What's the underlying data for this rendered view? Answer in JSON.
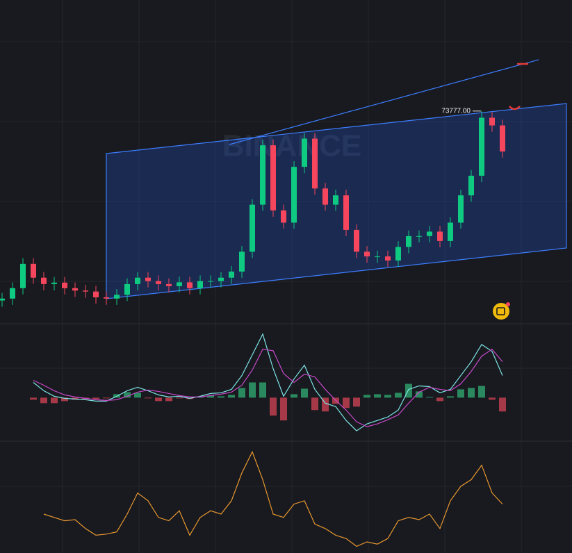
{
  "chart_data": [
    {
      "type": "candlestick",
      "watermark": "BINANCE",
      "annotation": "73777.00",
      "log_scale": true,
      "ylim": [
        2125,
        473000
      ],
      "up_color": "#0ecb81",
      "down_color": "#f6465d",
      "open": [
        3100,
        3200,
        3810,
        5720,
        4540,
        4080,
        4180,
        3810,
        3660,
        3600,
        3270,
        3200,
        3410,
        4080,
        4540,
        4290,
        4080,
        3940,
        4200,
        3810,
        4290,
        4290,
        4540,
        5030,
        7010,
        15400,
        41600,
        14000,
        11400,
        29000,
        46500,
        20200,
        15400,
        18000,
        10100,
        7010,
        6480,
        6480,
        6050,
        7590,
        9110,
        9110,
        9810,
        8390,
        11400,
        18000,
        25000,
        66000,
        58000
      ],
      "high": [
        3520,
        4190,
        6290,
        6290,
        4990,
        4600,
        4600,
        4190,
        4030,
        3960,
        3600,
        3750,
        4490,
        4990,
        4990,
        4720,
        4490,
        4620,
        4620,
        4720,
        4720,
        4990,
        5530,
        7710,
        16900,
        45800,
        45800,
        15400,
        31900,
        51200,
        51200,
        22200,
        19800,
        19800,
        11100,
        7710,
        7130,
        7130,
        8350,
        10000,
        10000,
        10800,
        10800,
        12500,
        19800,
        27500,
        73777,
        72600,
        63800
      ],
      "low": [
        2790,
        2880,
        3430,
        4090,
        3670,
        3670,
        3430,
        3290,
        3240,
        2940,
        2880,
        2880,
        3070,
        3670,
        3860,
        3670,
        3550,
        3550,
        3430,
        3430,
        3860,
        3860,
        4090,
        4530,
        6310,
        13900,
        12600,
        10300,
        10300,
        26100,
        18200,
        13900,
        13900,
        9090,
        6310,
        5830,
        5830,
        5450,
        5450,
        6830,
        8200,
        8200,
        7550,
        7550,
        10300,
        16200,
        22500,
        52200,
        33800
      ],
      "close": [
        3200,
        3810,
        5720,
        4540,
        4080,
        4180,
        3810,
        3660,
        3600,
        3270,
        3200,
        3410,
        4080,
        4540,
        4290,
        4080,
        3940,
        4200,
        3810,
        4290,
        4290,
        4540,
        5030,
        7010,
        15400,
        41600,
        14000,
        11400,
        29000,
        46500,
        20200,
        15400,
        18000,
        10100,
        7010,
        6480,
        6480,
        6050,
        7590,
        9110,
        9110,
        9810,
        8390,
        11400,
        18000,
        25000,
        66000,
        58000,
        37500
      ]
    },
    {
      "type": "macd",
      "ylim": [
        -63,
        107
      ],
      "series": [
        {
          "color": "#7fe6e6",
          "values": [
            null,
            null,
            null,
            22,
            10,
            2,
            -1,
            -2,
            -3,
            -5,
            -5,
            2,
            10,
            15,
            10,
            4,
            1,
            2,
            -1,
            2,
            6,
            7,
            12,
            32,
            62,
            92,
            42,
            2,
            27,
            47,
            12,
            -8,
            -13,
            -33,
            -48,
            -38,
            -33,
            -28,
            -18,
            12,
            17,
            16,
            7,
            12,
            32,
            52,
            77,
            67,
            32
          ]
        },
        {
          "color": "#c948c9",
          "values": [
            null,
            null,
            null,
            25,
            18,
            10,
            4,
            1,
            -1,
            -3,
            -4,
            -3,
            2,
            8,
            11,
            9,
            6,
            3,
            1,
            1,
            3,
            5,
            8,
            18,
            40,
            70,
            68,
            35,
            22,
            34,
            30,
            12,
            -4,
            -18,
            -35,
            -42,
            -38,
            -32,
            -25,
            -8,
            8,
            15,
            12,
            10,
            20,
            38,
            60,
            70,
            52
          ]
        }
      ],
      "histogram": [
        null,
        null,
        null,
        -3,
        -8,
        -8,
        -5,
        -3,
        -2,
        -2,
        -1,
        5,
        8,
        7,
        -1,
        -5,
        -5,
        -1,
        -2,
        1,
        3,
        2,
        4,
        14,
        22,
        22,
        -26,
        -33,
        5,
        13,
        -18,
        -20,
        -9,
        -15,
        -13,
        4,
        5,
        4,
        7,
        20,
        9,
        1,
        -5,
        2,
        12,
        14,
        17,
        -3,
        -20
      ],
      "up_color": "#2e9e6a",
      "down_color": "#c0404f"
    },
    {
      "type": "line",
      "ylim": [
        0,
        100
      ],
      "color": "#e8972e",
      "values": [
        null,
        null,
        null,
        null,
        35,
        32,
        29,
        30,
        22,
        16,
        17,
        19,
        35,
        54,
        47,
        32,
        29,
        38,
        16,
        32,
        38,
        35,
        47,
        72,
        91,
        66,
        35,
        32,
        44,
        47,
        26,
        22,
        16,
        13,
        6,
        10,
        8,
        13,
        29,
        32,
        30,
        35,
        22,
        47,
        60,
        66,
        79,
        54,
        44
      ]
    }
  ]
}
